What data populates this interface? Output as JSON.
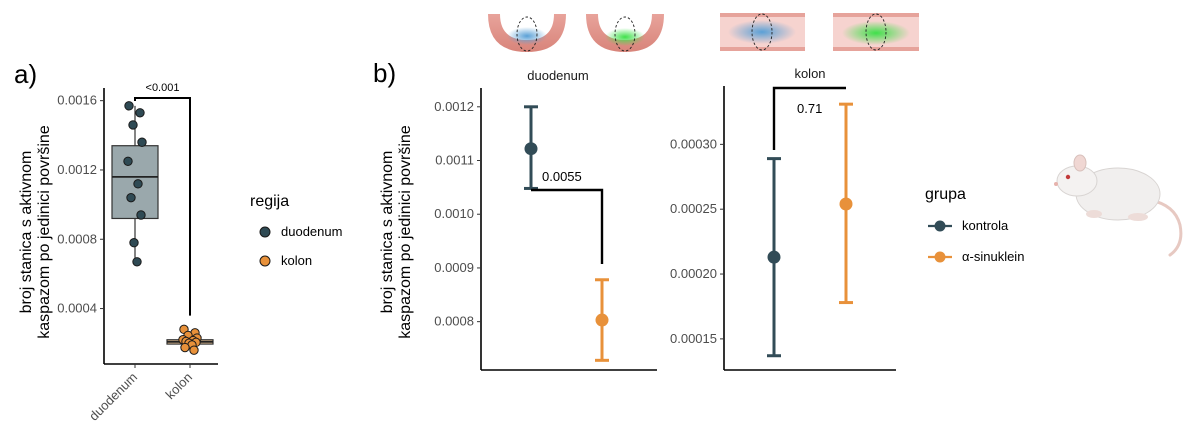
{
  "colors": {
    "duodenum_fill": "#2f4a54",
    "kolon_fill": "#e8913a",
    "kontrola": "#324c57",
    "asinuklein": "#e8913a",
    "box_duodenum": "#9aa8ac",
    "box_kolon": "#f0c89a"
  },
  "panel_a": {
    "letter": "a)",
    "ylabel_line1": "broj stanica s aktivnom",
    "ylabel_line2": "kaspazom po jedinici površine",
    "pvalue": "<0.001",
    "legend_title": "regija",
    "legend_items": [
      "duodenum",
      "kolon"
    ]
  },
  "panel_b": {
    "letter": "b)",
    "ylabel_line1": "broj stanica s aktivnom",
    "ylabel_line2": "kaspazom po jedinici površine",
    "legend_title": "grupa",
    "legend_items": [
      "kontrola",
      "α-sinuklein"
    ]
  },
  "chart_data": [
    {
      "type": "box",
      "panel": "a)",
      "categories": [
        "duodenum",
        "kolon"
      ],
      "ylim": [
        8e-05,
        0.00165
      ],
      "yticks": [
        0.0004,
        0.0008,
        0.0012,
        0.0016
      ],
      "ytick_labels": [
        "0.0004",
        "0.0008",
        "0.0012",
        "0.0016"
      ],
      "boxes": [
        {
          "category": "duodenum",
          "min": 0.00067,
          "q1": 0.00092,
          "median": 0.00116,
          "q3": 0.00134,
          "max": 0.00157
        },
        {
          "category": "kolon",
          "min": 0.000185,
          "q1": 0.000195,
          "median": 0.000208,
          "q3": 0.00022,
          "max": 0.000255
        }
      ],
      "points": {
        "duodenum": [
          0.00157,
          0.00153,
          0.00146,
          0.00136,
          0.00125,
          0.00112,
          0.00104,
          0.00094,
          0.00078,
          0.00067
        ],
        "kolon": [
          0.00028,
          0.00026,
          0.000245,
          0.00023,
          0.00022,
          0.000215,
          0.00021,
          0.000205,
          0.0002,
          0.00019,
          0.000175,
          0.00016
        ]
      },
      "comparison": {
        "pair": [
          "duodenum",
          "kolon"
        ],
        "label": "<0.001"
      }
    },
    {
      "type": "errorbar",
      "panel": "b)",
      "facet": "duodenum",
      "ylim": [
        0.00071,
        0.001235
      ],
      "yticks": [
        0.0008,
        0.0009,
        0.001,
        0.0011,
        0.0012
      ],
      "ytick_labels": [
        "0.0008",
        "0.0009",
        "0.0010",
        "0.0011",
        "0.0012"
      ],
      "series": [
        {
          "name": "kontrola",
          "mean": 0.001122,
          "lower": 0.001048,
          "upper": 0.0012
        },
        {
          "name": "α-sinuklein",
          "mean": 0.000803,
          "lower": 0.000728,
          "upper": 0.000878
        }
      ],
      "comparison": {
        "label": "0.0055"
      }
    },
    {
      "type": "errorbar",
      "panel": "b)",
      "facet": "kolon",
      "ylim": [
        0.000126,
        0.000345
      ],
      "yticks": [
        0.00015,
        0.0002,
        0.00025,
        0.0003
      ],
      "ytick_labels": [
        "0.00015",
        "0.00020",
        "0.00025",
        "0.00030"
      ],
      "series": [
        {
          "name": "kontrola",
          "mean": 0.000213,
          "lower": 0.000137,
          "upper": 0.000289
        },
        {
          "name": "α-sinuklein",
          "mean": 0.000254,
          "lower": 0.000178,
          "upper": 0.000331
        }
      ],
      "comparison": {
        "label": "0.71"
      }
    }
  ]
}
